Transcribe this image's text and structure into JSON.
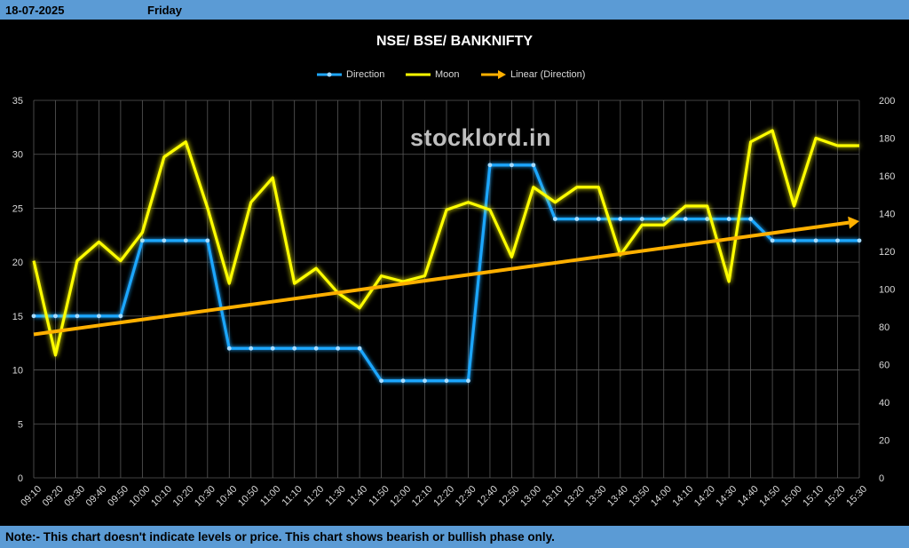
{
  "header": {
    "date": "18-07-2025",
    "day": "Friday"
  },
  "footer": {
    "note": "Note:- This chart doesn't indicate levels or price. This chart shows bearish or bullish phase only."
  },
  "watermark": "stocklord.in",
  "colors": {
    "bar": "#5b9bd5",
    "direction": "#1ea7ff",
    "moon": "#ffff00",
    "trend": "#ffb000",
    "grid": "#595959"
  },
  "chart_data": {
    "type": "line",
    "title": "NSE/ BSE/ BANKNIFTY",
    "legend": {
      "placement": "top",
      "entries": [
        "Direction",
        "Moon",
        "Linear (Direction)"
      ]
    },
    "grid": true,
    "x": [
      "09:10",
      "09:20",
      "09:30",
      "09:40",
      "09:50",
      "10:00",
      "10:10",
      "10:20",
      "10:30",
      "10:40",
      "10:50",
      "11:00",
      "11:10",
      "11:20",
      "11:30",
      "11:40",
      "11:50",
      "12:00",
      "12:10",
      "12:20",
      "12:30",
      "12:40",
      "12:50",
      "13:00",
      "13:10",
      "13:20",
      "13:30",
      "13:40",
      "13:50",
      "14:00",
      "14:10",
      "14:20",
      "14:30",
      "14:40",
      "14:50",
      "15:00",
      "15:10",
      "15:20",
      "15:30"
    ],
    "y_left": {
      "ylim": [
        0,
        35
      ],
      "ticks": [
        0,
        5,
        10,
        15,
        20,
        25,
        30,
        35
      ]
    },
    "y_right": {
      "ylim": [
        0,
        200
      ],
      "ticks": [
        0,
        20,
        40,
        60,
        80,
        100,
        120,
        140,
        160,
        180,
        200
      ]
    },
    "series": [
      {
        "name": "Direction",
        "axis": "left",
        "values": [
          15,
          15,
          15,
          15,
          15,
          22,
          22,
          22,
          22,
          12,
          12,
          12,
          12,
          12,
          12,
          12,
          9,
          9,
          9,
          9,
          9,
          29,
          29,
          29,
          24,
          24,
          24,
          24,
          24,
          24,
          24,
          24,
          24,
          24,
          22,
          22,
          22,
          22,
          22
        ]
      },
      {
        "name": "Moon",
        "axis": "right",
        "values": [
          115,
          65,
          115,
          125,
          115,
          130,
          170,
          178,
          143,
          103,
          146,
          159,
          103,
          111,
          98,
          90,
          107,
          104,
          107,
          142,
          146,
          142,
          117,
          154,
          146,
          154,
          154,
          118,
          134,
          134,
          144,
          144,
          104,
          178,
          184,
          144,
          180,
          176,
          176
        ]
      },
      {
        "name": "Linear (Direction)",
        "axis": "left",
        "type": "trendline",
        "from": 13.3,
        "to": 23.8
      }
    ]
  }
}
